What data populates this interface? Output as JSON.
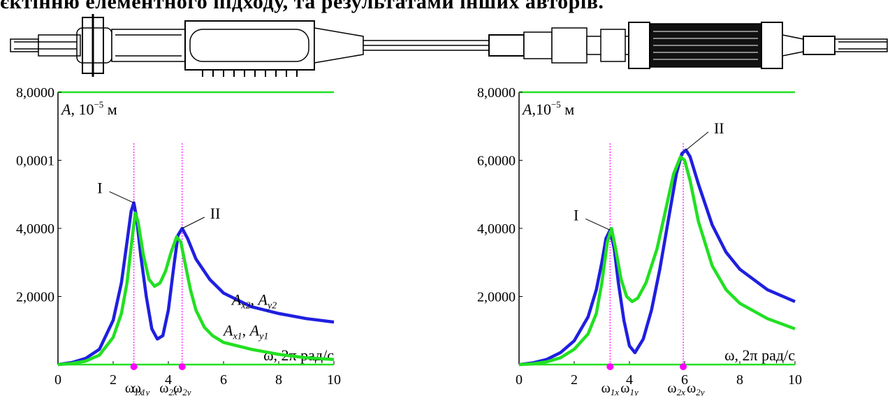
{
  "header_text": "єктінню елементного підходу, та результатами інших авторів.",
  "colors": {
    "blue": "#1f1fe0",
    "green": "#22e022",
    "magenta": "#ff00ff"
  },
  "chart_data": [
    {
      "type": "line",
      "ytext": "A, 10",
      "yexp": "−5",
      "yunit": " м",
      "xtext": "ω, 2π рад/с",
      "xlim": [
        0,
        10
      ],
      "xticks": [
        "0",
        "2",
        "4",
        "6",
        "8",
        "10"
      ],
      "yticks": [
        "2,0000",
        "4,0000",
        "0,0001",
        "8,0000"
      ],
      "ylim": [
        0,
        8
      ],
      "top_line": 8,
      "series": [
        {
          "name": "A_x2, A_y2",
          "color": "blue",
          "x": [
            0,
            0.5,
            1,
            1.5,
            2,
            2.3,
            2.5,
            2.65,
            2.75,
            2.85,
            3.0,
            3.2,
            3.4,
            3.6,
            3.8,
            4.0,
            4.2,
            4.35,
            4.5,
            4.7,
            5.0,
            5.5,
            6,
            7,
            8,
            9,
            10
          ],
          "y": [
            0,
            0.06,
            0.18,
            0.45,
            1.3,
            2.4,
            3.6,
            4.5,
            4.75,
            4.3,
            3.2,
            2.0,
            1.05,
            0.75,
            0.85,
            1.6,
            2.9,
            3.8,
            4.0,
            3.7,
            3.1,
            2.5,
            2.1,
            1.7,
            1.5,
            1.35,
            1.25
          ]
        },
        {
          "name": "A_x1, A_y1",
          "color": "green",
          "x": [
            0,
            0.5,
            1,
            1.5,
            2,
            2.3,
            2.5,
            2.7,
            2.8,
            2.9,
            3.1,
            3.3,
            3.5,
            3.7,
            3.9,
            4.1,
            4.3,
            4.45,
            4.6,
            4.8,
            5.0,
            5.3,
            5.6,
            6,
            7,
            8,
            9,
            10
          ],
          "y": [
            0,
            0.03,
            0.1,
            0.28,
            0.8,
            1.5,
            2.4,
            3.8,
            4.45,
            4.2,
            3.2,
            2.5,
            2.3,
            2.4,
            2.75,
            3.3,
            3.75,
            3.6,
            3.0,
            2.2,
            1.6,
            1.1,
            0.85,
            0.65,
            0.45,
            0.3,
            0.2,
            0.15
          ]
        }
      ],
      "markers": [
        {
          "x": 2.75,
          "label": "ω",
          "sub": "1x"
        },
        {
          "x": 3.0,
          "label": "ω",
          "sub": "1y"
        },
        {
          "x": 4.0,
          "label": "ω",
          "sub": "2x"
        },
        {
          "x": 4.5,
          "label": "ω",
          "sub": "2y"
        }
      ],
      "vlines": [
        2.75,
        4.5
      ],
      "dots": [
        2.75,
        4.5
      ],
      "annotations": [
        {
          "text": "I",
          "x": 2.75,
          "y": 4.75,
          "dx": -45,
          "dy": -20
        },
        {
          "text": "II",
          "x": 4.5,
          "y": 4.0,
          "dx": 40,
          "dy": -20
        }
      ],
      "series_labels": [
        {
          "A": "A",
          "s1": "x2",
          "B": "A",
          "s2": "y2",
          "x": 6.3,
          "y": 1.75
        },
        {
          "A": "A",
          "s1": "x1",
          "B": "A",
          "s2": "y1",
          "x": 6.0,
          "y": 0.85
        }
      ]
    },
    {
      "type": "line",
      "ytext": "A,10",
      "yexp": "−5",
      "yunit": " м",
      "xtext": "ω, 2π рад/с",
      "xlim": [
        0,
        10
      ],
      "xticks": [
        "0",
        "2",
        "4",
        "6",
        "8",
        "10"
      ],
      "yticks": [
        "2,0000",
        "4,0000",
        "6,0000",
        "8,0000"
      ],
      "ylim": [
        0,
        8
      ],
      "top_line": 8,
      "series": [
        {
          "name": "",
          "color": "blue",
          "x": [
            0,
            0.5,
            1,
            1.5,
            2,
            2.5,
            2.8,
            3.0,
            3.15,
            3.3,
            3.45,
            3.6,
            3.8,
            4.0,
            4.2,
            4.5,
            4.8,
            5.1,
            5.4,
            5.7,
            5.9,
            6.05,
            6.2,
            6.5,
            7,
            7.5,
            8,
            9,
            10
          ],
          "y": [
            0,
            0.05,
            0.15,
            0.35,
            0.7,
            1.4,
            2.2,
            3.0,
            3.7,
            3.95,
            3.4,
            2.4,
            1.3,
            0.55,
            0.35,
            0.75,
            1.6,
            2.8,
            4.2,
            5.6,
            6.2,
            6.3,
            6.1,
            5.3,
            4.1,
            3.3,
            2.8,
            2.2,
            1.85
          ]
        },
        {
          "name": "",
          "color": "green",
          "x": [
            0,
            0.5,
            1,
            1.5,
            2,
            2.5,
            2.8,
            3.0,
            3.2,
            3.35,
            3.5,
            3.7,
            3.9,
            4.1,
            4.3,
            4.6,
            5.0,
            5.3,
            5.6,
            5.85,
            6.0,
            6.2,
            6.5,
            7,
            7.5,
            8,
            9,
            10
          ],
          "y": [
            0,
            0.02,
            0.08,
            0.2,
            0.45,
            0.9,
            1.5,
            2.4,
            3.6,
            4.0,
            3.4,
            2.5,
            2.0,
            1.85,
            1.95,
            2.4,
            3.4,
            4.5,
            5.6,
            6.1,
            6.0,
            5.4,
            4.2,
            2.9,
            2.2,
            1.8,
            1.35,
            1.05
          ]
        }
      ],
      "markers": [
        {
          "x": 3.3,
          "label": "ω",
          "sub": "1x"
        },
        {
          "x": 4.0,
          "label": "ω",
          "sub": "1y"
        },
        {
          "x": 5.7,
          "label": "ω",
          "sub": "2x"
        },
        {
          "x": 6.4,
          "label": "ω",
          "sub": "2y"
        }
      ],
      "vlines": [
        3.3,
        5.95
      ],
      "dots": [
        3.3,
        5.95
      ],
      "annotations": [
        {
          "text": "I",
          "x": 3.3,
          "y": 3.95,
          "dx": -45,
          "dy": -20
        },
        {
          "text": "II",
          "x": 6.05,
          "y": 6.3,
          "dx": 40,
          "dy": -30
        }
      ],
      "series_labels": []
    }
  ]
}
